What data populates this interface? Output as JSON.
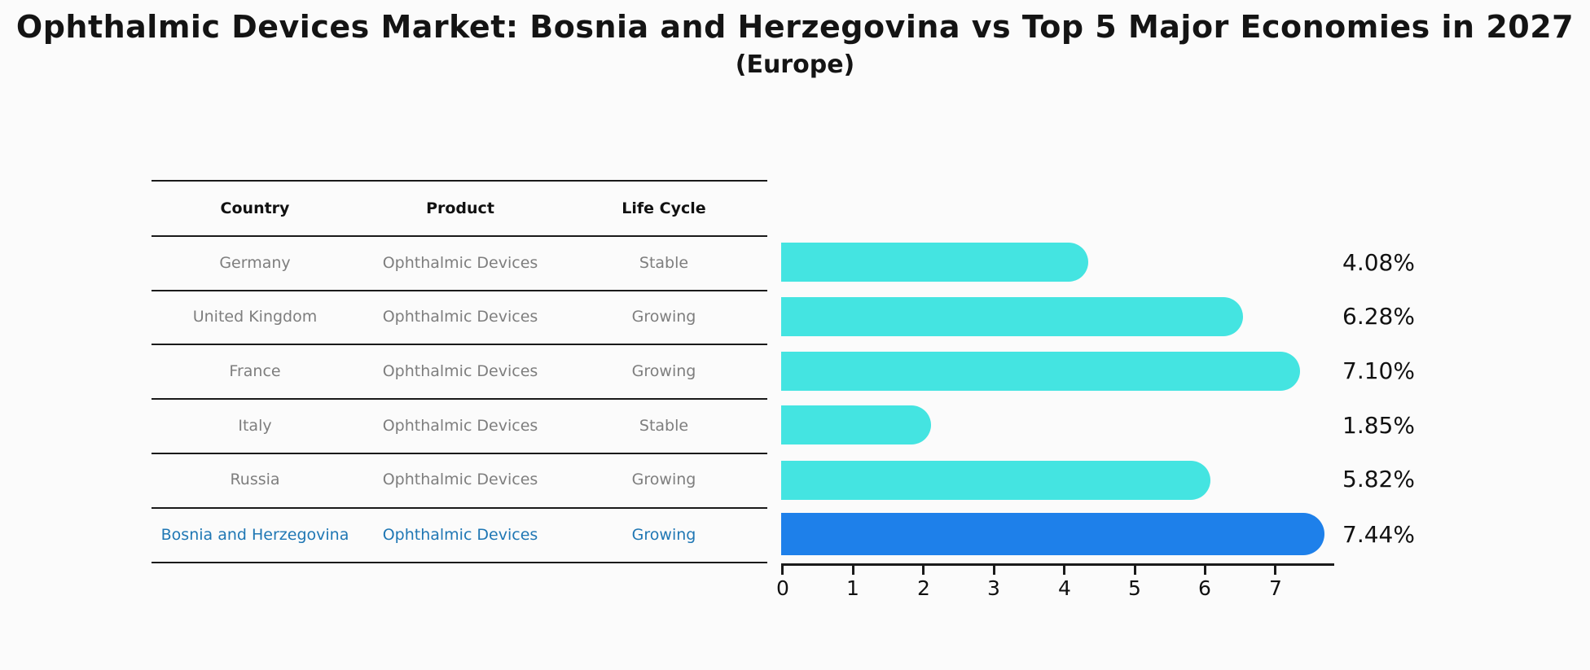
{
  "title": "Ophthalmic Devices Market: Bosnia and Herzegovina vs Top 5 Major Economies in 2027",
  "subtitle": "(Europe)",
  "table": {
    "headers": [
      "Country",
      "Product",
      "Life Cycle"
    ],
    "rows": [
      {
        "country": "Germany",
        "product": "Ophthalmic Devices",
        "life_cycle": "Stable",
        "highlighted": false
      },
      {
        "country": "United Kingdom",
        "product": "Ophthalmic Devices",
        "life_cycle": "Growing",
        "highlighted": false
      },
      {
        "country": "France",
        "product": "Ophthalmic Devices",
        "life_cycle": "Growing",
        "highlighted": false
      },
      {
        "country": "Italy",
        "product": "Ophthalmic Devices",
        "life_cycle": "Stable",
        "highlighted": false
      },
      {
        "country": "Russia",
        "product": "Ophthalmic Devices",
        "life_cycle": "Growing",
        "highlighted": false
      },
      {
        "country": "Bosnia and Herzegovina",
        "product": "Ophthalmic Devices",
        "life_cycle": "Growing",
        "highlighted": true
      }
    ]
  },
  "chart_data": {
    "type": "bar",
    "orientation": "horizontal",
    "title": "Ophthalmic Devices Market: Bosnia and Herzegovina vs Top 5 Major Economies in 2027 (Europe)",
    "categories": [
      "Germany",
      "United Kingdom",
      "France",
      "Italy",
      "Russia",
      "Bosnia and Herzegovina"
    ],
    "values": [
      4.08,
      6.28,
      7.1,
      1.85,
      5.82,
      7.44
    ],
    "value_labels": [
      "4.08%",
      "6.28%",
      "7.10%",
      "1.85%",
      "5.82%",
      "7.44%"
    ],
    "xlabel": "",
    "ylabel": "",
    "xlim": [
      0,
      7.84
    ],
    "xticks": [
      "0",
      "1",
      "2",
      "3",
      "4",
      "5",
      "6",
      "7"
    ],
    "grid": false,
    "legend": "none",
    "bar_color": "#44E4E1",
    "highlight_color": "#1E80EA",
    "highlight_border_color": "#1E80EA",
    "highlight_index": 5
  },
  "colors": {
    "row_text": "#7E7E7E",
    "highlight_row_text": "#1F77B4",
    "header_text": "#111111",
    "axis": "#1a1a1a"
  }
}
